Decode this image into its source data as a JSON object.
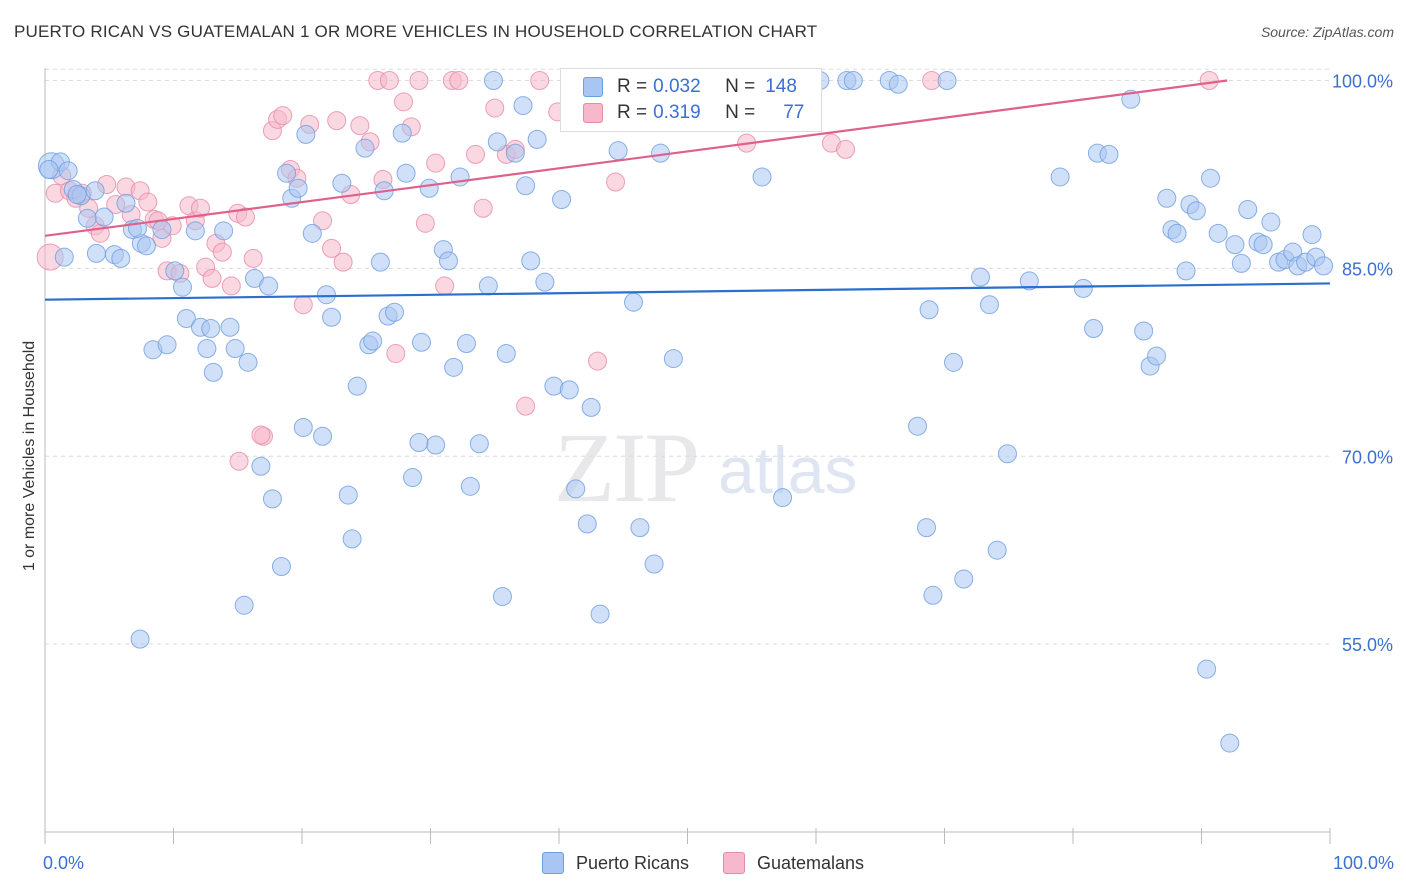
{
  "title": "PUERTO RICAN VS GUATEMALAN 1 OR MORE VEHICLES IN HOUSEHOLD CORRELATION CHART",
  "source": "Source: ZipAtlas.com",
  "watermark": {
    "zip": "ZIP",
    "atlas": "atlas"
  },
  "legend": {
    "rows": [
      {
        "r_label": "R =",
        "r_value": "0.032",
        "n_label": "N =",
        "n_value": "148"
      },
      {
        "r_label": "R =",
        "r_value": "0.319",
        "n_label": "N =",
        "n_value": "77"
      }
    ]
  },
  "bottom_legend": [
    "Puerto Ricans",
    "Guatemalans"
  ],
  "colors": {
    "blue_fill": "#a9c6f2",
    "blue_stroke": "#6e9de0",
    "blue_line": "#2a6fcc",
    "pink_fill": "#f6b8cb",
    "pink_stroke": "#e98aa8",
    "pink_line": "#e0608c",
    "tick_label": "#3b6fd4",
    "grid": "#dcdcdc"
  },
  "chart_data": {
    "type": "scatter",
    "title": "PUERTO RICAN VS GUATEMALAN 1 OR MORE VEHICLES IN HOUSEHOLD CORRELATION CHART",
    "xlabel": "",
    "ylabel": "1 or more Vehicles in Household",
    "xlim": [
      0,
      100
    ],
    "ylim": [
      40,
      101
    ],
    "x_tick_labels": [
      "0.0%",
      "100.0%"
    ],
    "y_ticks": [
      55,
      70,
      85,
      100
    ],
    "y_tick_labels": [
      "55.0%",
      "70.0%",
      "85.0%",
      "100.0%"
    ],
    "grid": true,
    "legend_placement": "top-center",
    "series": [
      {
        "name": "Puerto Ricans",
        "color": "#a9c6f2",
        "trend": {
          "x": [
            0,
            100
          ],
          "y": [
            82.5,
            83.8
          ]
        },
        "points": [
          [
            0.5,
            93.2
          ],
          [
            1.2,
            93.5
          ],
          [
            1.8,
            92.8
          ],
          [
            2.2,
            91.3
          ],
          [
            2.8,
            90.8
          ],
          [
            3.3,
            89.0
          ],
          [
            4.0,
            86.2
          ],
          [
            4.6,
            89.1
          ],
          [
            5.4,
            86.1
          ],
          [
            5.9,
            85.8
          ],
          [
            6.3,
            90.2
          ],
          [
            6.8,
            88.1
          ],
          [
            7.5,
            87.0
          ],
          [
            7.9,
            86.8
          ],
          [
            8.4,
            78.5
          ],
          [
            9.5,
            78.9
          ],
          [
            10.1,
            84.8
          ],
          [
            10.7,
            83.5
          ],
          [
            11.0,
            81.0
          ],
          [
            11.7,
            88.0
          ],
          [
            12.1,
            80.3
          ],
          [
            12.6,
            78.6
          ],
          [
            13.1,
            76.7
          ],
          [
            13.9,
            88.0
          ],
          [
            14.4,
            80.3
          ],
          [
            14.8,
            78.6
          ],
          [
            15.8,
            77.5
          ],
          [
            16.3,
            84.2
          ],
          [
            16.8,
            69.2
          ],
          [
            17.4,
            83.6
          ],
          [
            17.7,
            66.6
          ],
          [
            18.4,
            61.2
          ],
          [
            18.8,
            92.6
          ],
          [
            19.2,
            90.6
          ],
          [
            20.3,
            95.7
          ],
          [
            20.8,
            87.8
          ],
          [
            21.6,
            71.6
          ],
          [
            21.9,
            82.9
          ],
          [
            22.3,
            81.1
          ],
          [
            23.1,
            91.8
          ],
          [
            23.6,
            66.9
          ],
          [
            23.9,
            63.4
          ],
          [
            24.3,
            75.6
          ],
          [
            25.2,
            78.9
          ],
          [
            25.5,
            79.2
          ],
          [
            26.1,
            85.5
          ],
          [
            26.7,
            81.2
          ],
          [
            27.2,
            81.5
          ],
          [
            27.8,
            95.8
          ],
          [
            28.1,
            92.6
          ],
          [
            28.6,
            68.3
          ],
          [
            29.3,
            79.1
          ],
          [
            29.9,
            91.4
          ],
          [
            30.4,
            70.9
          ],
          [
            31.0,
            86.5
          ],
          [
            31.4,
            85.6
          ],
          [
            31.8,
            77.1
          ],
          [
            32.3,
            92.3
          ],
          [
            32.8,
            79.0
          ],
          [
            33.1,
            67.6
          ],
          [
            33.8,
            71.0
          ],
          [
            34.5,
            83.6
          ],
          [
            34.9,
            100.0
          ],
          [
            35.2,
            95.1
          ],
          [
            35.6,
            58.8
          ],
          [
            35.9,
            78.2
          ],
          [
            36.6,
            94.2
          ],
          [
            37.2,
            98.0
          ],
          [
            37.8,
            85.6
          ],
          [
            38.3,
            95.3
          ],
          [
            38.9,
            83.9
          ],
          [
            39.6,
            75.6
          ],
          [
            40.2,
            90.5
          ],
          [
            40.8,
            75.3
          ],
          [
            41.3,
            67.4
          ],
          [
            42.2,
            64.6
          ],
          [
            42.5,
            73.9
          ],
          [
            43.2,
            57.4
          ],
          [
            44.6,
            94.4
          ],
          [
            45.1,
            100.0
          ],
          [
            45.8,
            82.3
          ],
          [
            46.3,
            64.3
          ],
          [
            47.4,
            61.4
          ],
          [
            48.9,
            77.8
          ],
          [
            55.8,
            92.3
          ],
          [
            57.4,
            66.7
          ],
          [
            60.3,
            100.0
          ],
          [
            62.4,
            100.0
          ],
          [
            62.9,
            100.0
          ],
          [
            65.7,
            100.0
          ],
          [
            66.4,
            99.7
          ],
          [
            67.9,
            72.4
          ],
          [
            68.6,
            64.3
          ],
          [
            68.8,
            81.7
          ],
          [
            69.1,
            58.9
          ],
          [
            70.2,
            100.0
          ],
          [
            70.7,
            77.5
          ],
          [
            71.5,
            60.2
          ],
          [
            72.8,
            84.3
          ],
          [
            73.5,
            82.1
          ],
          [
            74.1,
            62.5
          ],
          [
            74.9,
            70.2
          ],
          [
            76.6,
            84.0
          ],
          [
            79.0,
            92.3
          ],
          [
            80.8,
            83.4
          ],
          [
            81.6,
            80.2
          ],
          [
            81.9,
            94.2
          ],
          [
            82.8,
            94.1
          ],
          [
            84.5,
            98.5
          ],
          [
            85.5,
            80.0
          ],
          [
            86.0,
            77.2
          ],
          [
            86.5,
            78.0
          ],
          [
            87.3,
            90.6
          ],
          [
            87.7,
            88.1
          ],
          [
            88.1,
            87.8
          ],
          [
            88.8,
            84.8
          ],
          [
            89.1,
            90.1
          ],
          [
            89.6,
            89.6
          ],
          [
            90.4,
            53.0
          ],
          [
            90.7,
            92.2
          ],
          [
            91.3,
            87.8
          ],
          [
            92.2,
            47.1
          ],
          [
            92.6,
            86.9
          ],
          [
            93.1,
            85.4
          ],
          [
            93.6,
            89.7
          ],
          [
            94.4,
            87.1
          ],
          [
            94.8,
            86.9
          ],
          [
            95.4,
            88.7
          ],
          [
            96.0,
            85.5
          ],
          [
            96.5,
            85.7
          ],
          [
            97.1,
            86.3
          ],
          [
            97.5,
            85.2
          ],
          [
            98.1,
            85.5
          ],
          [
            98.6,
            87.7
          ],
          [
            98.9,
            85.9
          ],
          [
            99.5,
            85.2
          ],
          [
            0.3,
            92.9
          ],
          [
            1.5,
            85.9
          ],
          [
            2.5,
            90.9
          ],
          [
            3.9,
            91.2
          ],
          [
            7.2,
            88.2
          ],
          [
            9.1,
            88.1
          ],
          [
            12.9,
            80.2
          ],
          [
            19.7,
            91.4
          ],
          [
            24.9,
            94.6
          ],
          [
            26.4,
            91.2
          ],
          [
            29.1,
            71.1
          ],
          [
            37.4,
            91.6
          ],
          [
            47.9,
            94.2
          ],
          [
            7.4,
            55.4
          ],
          [
            15.5,
            58.1
          ],
          [
            20.1,
            72.3
          ]
        ]
      },
      {
        "name": "Guatemalans",
        "color": "#f6b8cb",
        "trend": {
          "x": [
            0,
            92
          ],
          "y": [
            87.6,
            100.0
          ]
        },
        "points": [
          [
            0.4,
            85.9
          ],
          [
            0.8,
            91.0
          ],
          [
            1.3,
            92.4
          ],
          [
            1.9,
            91.2
          ],
          [
            2.4,
            90.6
          ],
          [
            2.9,
            91.0
          ],
          [
            3.4,
            89.8
          ],
          [
            3.9,
            88.4
          ],
          [
            4.3,
            87.8
          ],
          [
            4.8,
            91.7
          ],
          [
            5.5,
            90.1
          ],
          [
            6.3,
            91.5
          ],
          [
            6.7,
            89.3
          ],
          [
            7.4,
            91.2
          ],
          [
            8.0,
            90.3
          ],
          [
            8.5,
            88.9
          ],
          [
            9.1,
            87.4
          ],
          [
            9.5,
            84.8
          ],
          [
            9.9,
            88.4
          ],
          [
            10.5,
            84.6
          ],
          [
            11.2,
            90.0
          ],
          [
            11.7,
            88.8
          ],
          [
            12.1,
            89.8
          ],
          [
            12.5,
            85.1
          ],
          [
            13.0,
            84.2
          ],
          [
            13.3,
            87.0
          ],
          [
            13.8,
            86.3
          ],
          [
            14.5,
            83.6
          ],
          [
            15.0,
            89.4
          ],
          [
            15.6,
            89.1
          ],
          [
            16.2,
            85.8
          ],
          [
            17.0,
            71.6
          ],
          [
            17.7,
            96.0
          ],
          [
            18.1,
            96.9
          ],
          [
            18.5,
            97.2
          ],
          [
            19.1,
            92.9
          ],
          [
            19.6,
            92.2
          ],
          [
            20.1,
            82.1
          ],
          [
            20.6,
            96.5
          ],
          [
            21.6,
            88.8
          ],
          [
            22.3,
            86.6
          ],
          [
            22.7,
            96.8
          ],
          [
            23.2,
            85.5
          ],
          [
            23.8,
            90.9
          ],
          [
            24.5,
            96.4
          ],
          [
            25.3,
            95.1
          ],
          [
            25.9,
            100.0
          ],
          [
            26.3,
            92.1
          ],
          [
            26.8,
            100.0
          ],
          [
            27.3,
            78.2
          ],
          [
            27.9,
            98.3
          ],
          [
            28.5,
            96.3
          ],
          [
            29.1,
            100.0
          ],
          [
            29.6,
            88.6
          ],
          [
            30.4,
            93.4
          ],
          [
            31.1,
            83.6
          ],
          [
            31.7,
            100.0
          ],
          [
            32.2,
            100.0
          ],
          [
            33.5,
            94.1
          ],
          [
            34.1,
            89.8
          ],
          [
            35.0,
            97.8
          ],
          [
            35.9,
            94.1
          ],
          [
            36.6,
            94.5
          ],
          [
            37.4,
            74.0
          ],
          [
            38.5,
            100.0
          ],
          [
            39.9,
            97.5
          ],
          [
            43.0,
            77.6
          ],
          [
            44.4,
            91.9
          ],
          [
            54.6,
            95.0
          ],
          [
            55.8,
            100.0
          ],
          [
            61.2,
            95.0
          ],
          [
            62.3,
            94.5
          ],
          [
            69.0,
            100.0
          ],
          [
            90.6,
            100.0
          ],
          [
            16.8,
            71.7
          ],
          [
            15.1,
            69.6
          ],
          [
            8.8,
            88.8
          ]
        ]
      }
    ]
  }
}
